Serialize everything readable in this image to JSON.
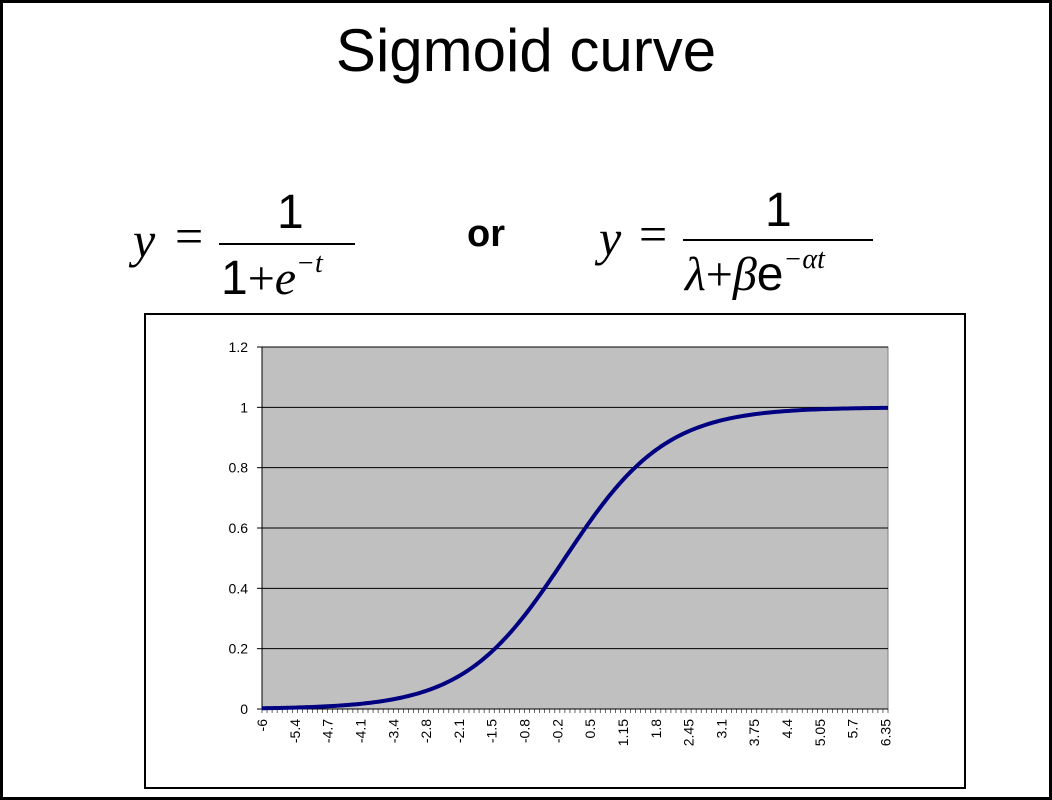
{
  "slide": {
    "title": "Sigmoid curve",
    "or_word": "or",
    "formula1": {
      "lhs": "y",
      "eq": "=",
      "numerator": "1",
      "den_one": "1",
      "den_plus": "+",
      "den_e": "e",
      "den_exp": "−t"
    },
    "formula2": {
      "lhs": "y",
      "eq": "=",
      "numerator": "1",
      "den_lambda": "λ",
      "den_plus": "+",
      "den_beta": "β",
      "den_e": "e",
      "den_exp": "−αt"
    }
  },
  "chart_data": {
    "type": "line",
    "title": "",
    "xlabel": "",
    "ylabel": "",
    "function": "1/(1+e^-t)",
    "x_start": -6,
    "x_end": 6.4,
    "x_step": 0.05,
    "x_tick_labels": [
      "-6",
      "-5.4",
      "-4.7",
      "-4.1",
      "-3.4",
      "-2.8",
      "-2.1",
      "-1.5",
      "-0.8",
      "-0.2",
      "0.5",
      "1.15",
      "1.8",
      "2.45",
      "3.1",
      "3.75",
      "4.4",
      "5.05",
      "5.7",
      "6.35"
    ],
    "x_tick_values": [
      -6,
      -5.35,
      -4.7,
      -4.05,
      -3.4,
      -2.75,
      -2.1,
      -1.45,
      -0.8,
      -0.15,
      0.5,
      1.15,
      1.8,
      2.45,
      3.1,
      3.75,
      4.4,
      5.05,
      5.7,
      6.35
    ],
    "y_ticks": [
      "0",
      "0.2",
      "0.4",
      "0.6",
      "0.8",
      "1",
      "1.2"
    ],
    "ylim": [
      0,
      1.2
    ],
    "grid": "horizontal",
    "plot_background": "#c0c0c0",
    "line_color": "#000080"
  }
}
